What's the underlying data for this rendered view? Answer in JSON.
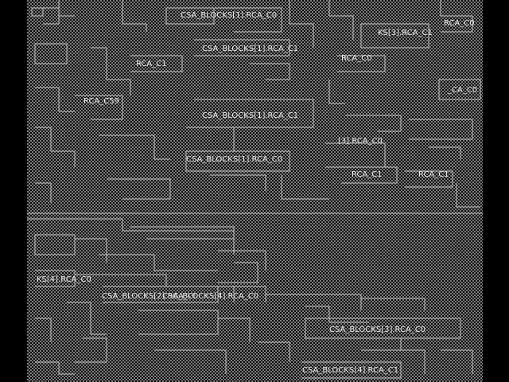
{
  "layout": {
    "colors": {
      "background": "#000000",
      "fill": "#808080",
      "wire": "#c8c8c8",
      "label": "#ffffff"
    },
    "labels": [
      "CSA_BLOCKS[1].RCA_C0",
      "CSA_BLOCKS[1].RCA_C1",
      "RCA_C0",
      "KS[3].RCA_C1",
      "RCA_C0",
      "RCA_C1",
      "RCA_C0",
      "_CA_C0",
      "RCA_C59",
      "CSA_BLOCKS[1].RCA_C1",
      "[3].RCA_C0",
      "CSA_BLOCKS[1].RCA_C0",
      "RCA_C1",
      "RCA_C1",
      "KS[4].RCA_C0",
      "CSA_BLOCKS[2].RCA_C0",
      "CSA_BLOCKS[4].RCA_C0",
      "CSA_BLOCKS[3].RCA_C0",
      "CSA_BLOCKS[4].RCA_C1"
    ]
  }
}
